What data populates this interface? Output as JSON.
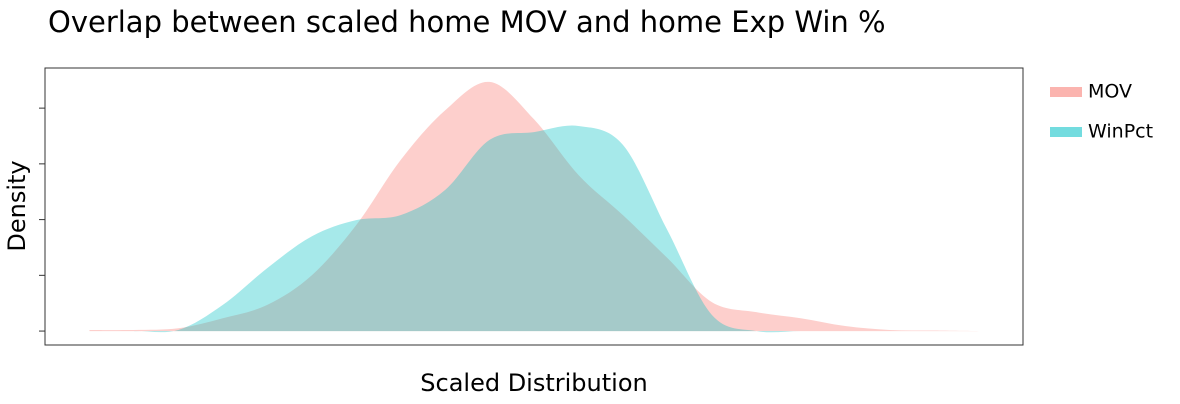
{
  "chart_data": {
    "type": "density",
    "title": "Overlap between scaled home MOV and home Exp Win %",
    "x_label": "Scaled Distribution",
    "y_label": "Density",
    "x": [
      0,
      1,
      2,
      3,
      4,
      5,
      6,
      7,
      8,
      9,
      10,
      11,
      12,
      13,
      14,
      15,
      16,
      17,
      18,
      19,
      20
    ],
    "series": [
      {
        "name": "MOV",
        "color": "#F8766D",
        "values": [
          0.02,
          0.02,
          0.05,
          0.23,
          0.47,
          1.0,
          1.9,
          3.07,
          3.96,
          4.47,
          3.8,
          2.8,
          2.08,
          1.31,
          0.52,
          0.34,
          0.23,
          0.09,
          0.02,
          0.01,
          0.0
        ]
      },
      {
        "name": "WinPct",
        "color": "#00BFC4",
        "values": [
          0.0,
          0.0,
          0.02,
          0.47,
          1.13,
          1.7,
          1.99,
          2.08,
          2.53,
          3.43,
          3.57,
          3.68,
          3.34,
          1.81,
          0.29,
          0.0,
          0.0,
          0.0,
          0.0,
          0.0,
          0.0
        ]
      }
    ],
    "xlim": [
      -1,
      21
    ],
    "ylim": [
      -0.25,
      4.72
    ],
    "yticks": [
      0,
      1,
      2,
      3,
      4
    ],
    "opacity": 0.35
  }
}
